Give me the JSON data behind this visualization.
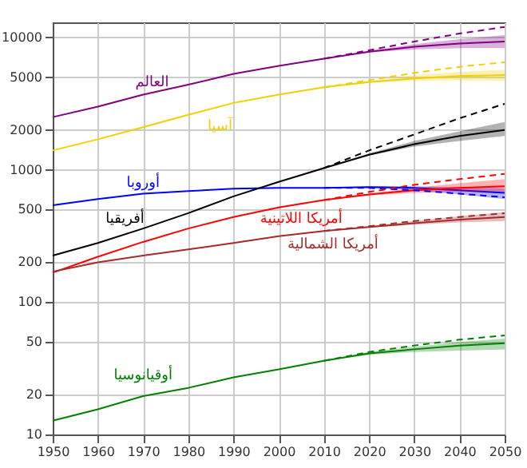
{
  "chart_data": {
    "type": "line",
    "log": "y",
    "grid": true,
    "xlim": [
      1950,
      2050
    ],
    "xticks": [
      1950,
      1960,
      1970,
      1980,
      1990,
      2000,
      2010,
      2020,
      2030,
      2040,
      2050
    ],
    "ylim": [
      10,
      13000
    ],
    "yticks": [
      10,
      20,
      50,
      100,
      200,
      500,
      1000,
      2000,
      5000,
      10000
    ],
    "x": [
      1950,
      1960,
      1970,
      1980,
      1990,
      2000,
      2010,
      2020,
      2030,
      2040,
      2050
    ],
    "series": [
      {
        "name": "العالم",
        "color": "#800080",
        "values": [
          2500,
          3000,
          3700,
          4400,
          5300,
          6100,
          6900,
          7800,
          8500,
          9000,
          9300
        ],
        "lower": [
          null,
          null,
          null,
          null,
          null,
          null,
          6900,
          7700,
          8100,
          8300,
          8300
        ],
        "upper": [
          null,
          null,
          null,
          null,
          null,
          null,
          6900,
          7900,
          8900,
          9700,
          10400
        ]
      },
      {
        "name": "آسيا",
        "color": "#f0d000",
        "values": [
          1400,
          1700,
          2100,
          2600,
          3200,
          3700,
          4200,
          4600,
          4900,
          5100,
          5200
        ],
        "lower": [
          null,
          null,
          null,
          null,
          null,
          null,
          4200,
          4550,
          4700,
          4750,
          4700
        ],
        "upper": [
          null,
          null,
          null,
          null,
          null,
          null,
          4200,
          4700,
          5200,
          5500,
          5700
        ]
      },
      {
        "name": "أوروبا",
        "color": "#0000ff",
        "values": [
          540,
          600,
          660,
          690,
          720,
          730,
          730,
          740,
          730,
          700,
          670
        ],
        "lower": [
          null,
          null,
          null,
          null,
          null,
          null,
          730,
          730,
          700,
          650,
          600
        ],
        "upper": [
          null,
          null,
          null,
          null,
          null,
          null,
          730,
          750,
          750,
          740,
          720
        ]
      },
      {
        "name": "أفريقيا",
        "color": "#000000",
        "values": [
          225,
          280,
          360,
          470,
          630,
          810,
          1030,
          1300,
          1560,
          1800,
          2000
        ],
        "lower": [
          null,
          null,
          null,
          null,
          null,
          null,
          1030,
          1280,
          1500,
          1650,
          1800
        ],
        "upper": [
          null,
          null,
          null,
          null,
          null,
          null,
          1030,
          1330,
          1650,
          1950,
          2300
        ]
      },
      {
        "name": "أمريكا اللاتينية",
        "color": "#ff0000",
        "values": [
          167,
          220,
          285,
          360,
          440,
          520,
          590,
          650,
          700,
          730,
          750
        ],
        "lower": [
          null,
          null,
          null,
          null,
          null,
          null,
          590,
          640,
          670,
          680,
          680
        ],
        "upper": [
          null,
          null,
          null,
          null,
          null,
          null,
          590,
          660,
          730,
          790,
          850
        ]
      },
      {
        "name": "أمريكا الشمالية",
        "color": "#a52a2a",
        "values": [
          170,
          200,
          225,
          250,
          280,
          315,
          345,
          370,
          395,
          420,
          440
        ],
        "lower": [
          null,
          null,
          null,
          null,
          null,
          null,
          345,
          365,
          385,
          400,
          410
        ],
        "upper": [
          null,
          null,
          null,
          null,
          null,
          null,
          345,
          375,
          410,
          445,
          480
        ]
      },
      {
        "name": "أوقيانوسيا",
        "color": "#008000",
        "values": [
          12.7,
          15.5,
          19.5,
          22.5,
          27,
          31,
          36,
          41,
          44,
          47,
          49
        ],
        "lower": [
          null,
          null,
          null,
          null,
          null,
          null,
          36,
          40,
          42,
          43,
          44
        ],
        "upper": [
          null,
          null,
          null,
          null,
          null,
          null,
          36,
          42,
          46,
          50,
          53
        ]
      },
      {
        "type": "line",
        "line_style": "dashed",
        "color": "#800080",
        "x": [
          2010,
          2020,
          2030,
          2040,
          2050
        ],
        "values": [
          6900,
          8000,
          9300,
          10700,
          12000
        ]
      },
      {
        "type": "line",
        "line_style": "dashed",
        "color": "#f0d000",
        "x": [
          2010,
          2020,
          2030,
          2040,
          2050
        ],
        "values": [
          4200,
          4750,
          5400,
          6000,
          6500
        ]
      },
      {
        "type": "line",
        "line_style": "dashed",
        "color": "#0000ff",
        "x": [
          2010,
          2020,
          2030,
          2040,
          2050
        ],
        "values": [
          730,
          730,
          700,
          660,
          620
        ]
      },
      {
        "type": "line",
        "line_style": "dashed",
        "color": "#000000",
        "x": [
          2010,
          2020,
          2030,
          2040,
          2050
        ],
        "values": [
          1030,
          1400,
          1850,
          2450,
          3150
        ]
      },
      {
        "type": "line",
        "line_style": "dashed",
        "color": "#ff0000",
        "x": [
          2010,
          2020,
          2030,
          2040,
          2050
        ],
        "values": [
          590,
          680,
          770,
          850,
          930
        ]
      },
      {
        "type": "line",
        "line_style": "dashed",
        "color": "#a52a2a",
        "x": [
          2010,
          2020,
          2030,
          2040,
          2050
        ],
        "values": [
          345,
          375,
          410,
          440,
          470
        ]
      },
      {
        "type": "line",
        "line_style": "dashed",
        "color": "#008000",
        "x": [
          2010,
          2020,
          2030,
          2040,
          2050
        ],
        "values": [
          36,
          42,
          47,
          52,
          56
        ]
      }
    ]
  }
}
